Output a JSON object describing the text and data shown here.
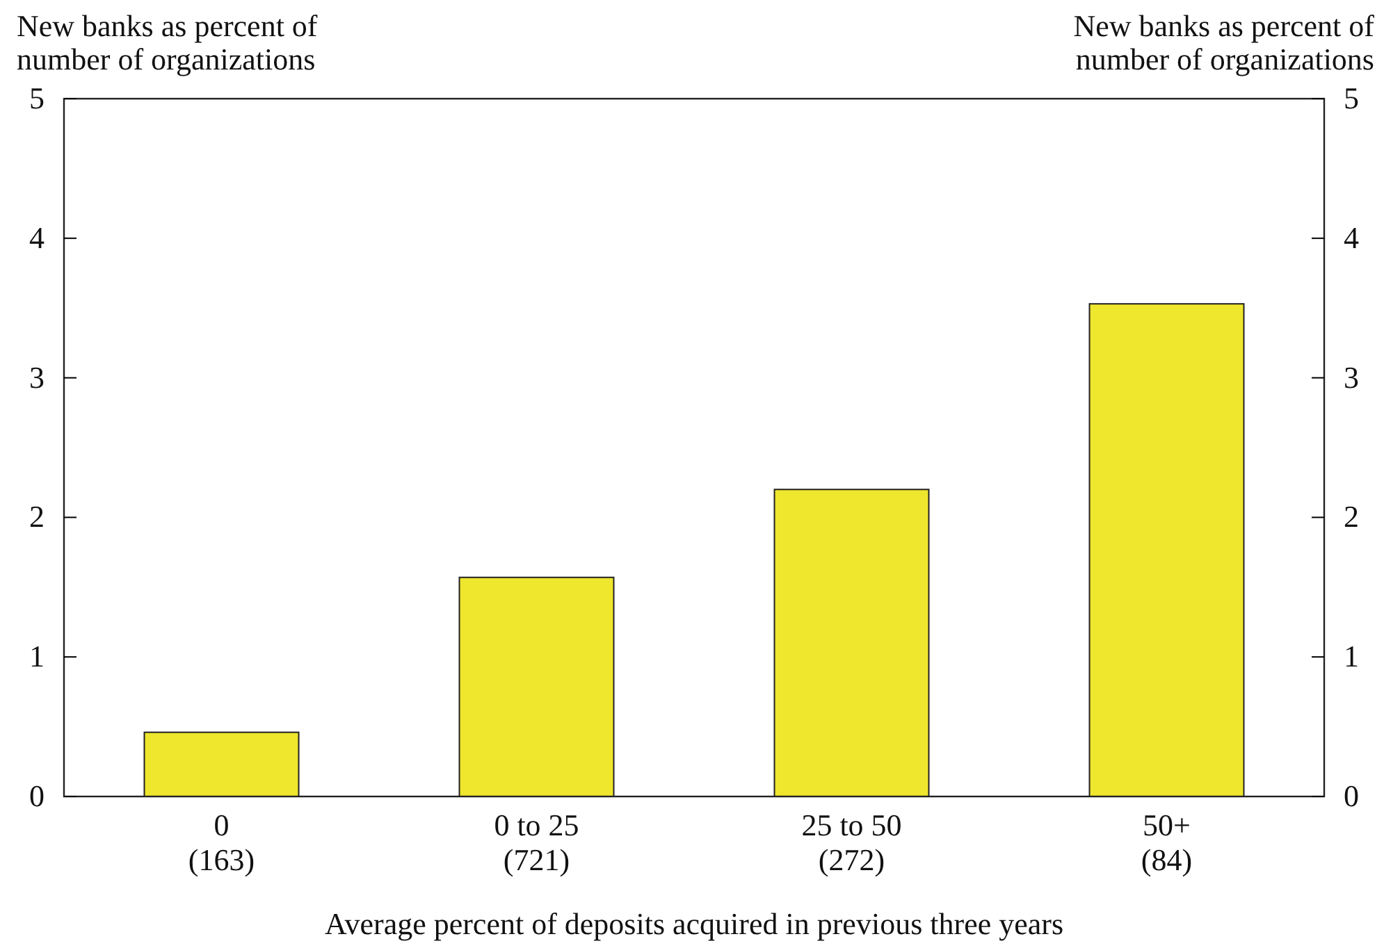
{
  "chart_data": {
    "type": "bar",
    "xlabel": "Average percent of deposits acquired in previous three years",
    "ylabel": "New banks as percent of\nnumber of organizations",
    "y2label": "New banks as percent of\nnumber of organizations",
    "categories": [
      "0\n(163)",
      "0 to 25\n(721)",
      "25 to 50\n(272)",
      "50+\n(84)"
    ],
    "values": [
      0.46,
      1.57,
      2.2,
      3.53
    ],
    "color": "#efe62e",
    "ylim": [
      0,
      5
    ],
    "yticks": [
      0,
      1,
      2,
      3,
      4,
      5
    ],
    "y2lim": [
      0,
      5
    ],
    "y2ticks": [
      0,
      1,
      2,
      3,
      4,
      5
    ],
    "grid": false
  }
}
